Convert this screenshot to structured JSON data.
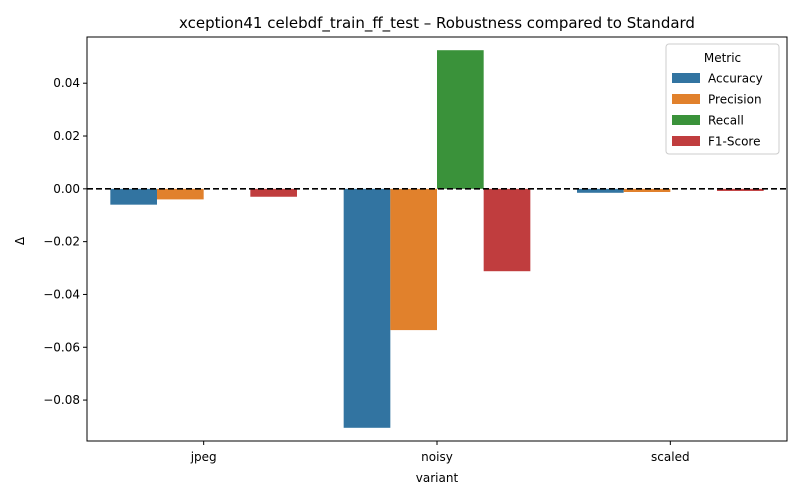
{
  "chart_data": {
    "type": "bar",
    "title": "xception41 celebdf_train_ff_test – Robustness compared to Standard",
    "xlabel": "variant",
    "ylabel": "Δ",
    "categories": [
      "jpeg",
      "noisy",
      "scaled"
    ],
    "ylim": [
      -0.0955,
      0.0575
    ],
    "yticks": [
      0.04,
      0.02,
      0.0,
      -0.02,
      -0.04,
      -0.06,
      -0.08
    ],
    "ytick_labels": [
      "0.04",
      "0.02",
      "0.00",
      "−0.02",
      "−0.04",
      "−0.06",
      "−0.08"
    ],
    "reference_line": 0.0,
    "grid": false,
    "legend": {
      "title": "Metric",
      "position": "top-right"
    },
    "series": [
      {
        "name": "Accuracy",
        "color": "#3274a1",
        "values": [
          -0.006,
          -0.0905,
          -0.0015
        ]
      },
      {
        "name": "Precision",
        "color": "#e1812c",
        "values": [
          -0.004,
          -0.0535,
          -0.0012
        ]
      },
      {
        "name": "Recall",
        "color": "#3a923a",
        "values": [
          0.0,
          0.0525,
          0.0
        ]
      },
      {
        "name": "F1-Score",
        "color": "#c03d3e",
        "values": [
          -0.003,
          -0.0312,
          -0.0008
        ]
      }
    ]
  }
}
